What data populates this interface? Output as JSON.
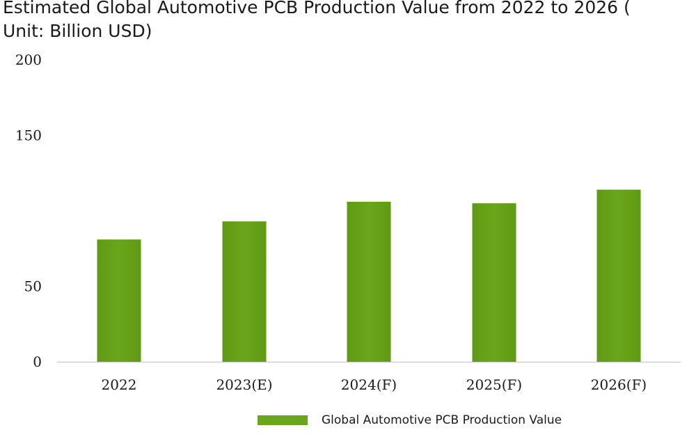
{
  "chart_data": {
    "type": "bar",
    "title": "Estimated Global Automotive PCB Production Value from 2022 to 2026 ( Unit: Billion USD)",
    "categories": [
      "2022",
      "2023(E)",
      "2024(F)",
      "2025(F)",
      "2026(F)"
    ],
    "series": [
      {
        "name": "Global Automotive PCB Production Value",
        "values": [
          81,
          93,
          106,
          105,
          114
        ],
        "color": "#6aa61b"
      }
    ],
    "ylim": [
      0,
      200
    ],
    "yticks": [
      "0",
      "50",
      "150",
      "200"
    ],
    "xlabel": "",
    "ylabel": "",
    "grid": false,
    "legend_position": "bottom"
  }
}
